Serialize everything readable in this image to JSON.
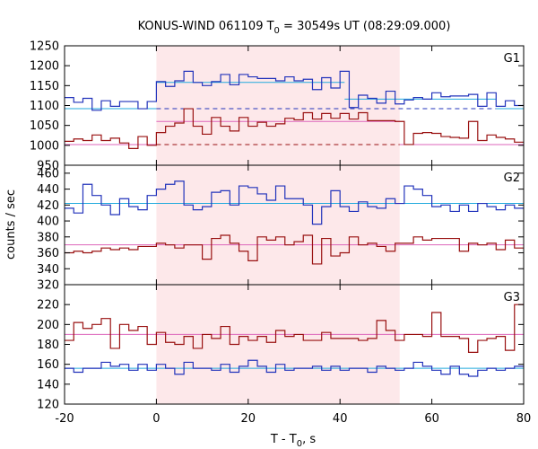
{
  "chart_data": {
    "type": "line",
    "title": "KONUS-WIND 061109 T",
    "title_sub": "0",
    "title_rest": " = 30549s UT (08:29:09.000)",
    "xlabel": "T - T",
    "xlabel_sub": "0",
    "xlabel_rest": ", s",
    "ylabel": "counts / sec",
    "xlim": [
      -20,
      80
    ],
    "xticks": [
      "-20",
      "0",
      "20",
      "40",
      "60",
      "80"
    ],
    "xtick_values": [
      -20,
      0,
      20,
      40,
      60,
      80
    ],
    "highlight_interval": [
      0,
      53
    ],
    "highlight_color": "#fde8ea",
    "bin_edges": [
      -20,
      -18,
      -16,
      -14,
      -12,
      -10,
      -8,
      -6,
      -4,
      -2,
      0,
      2,
      4,
      6,
      8,
      10,
      12,
      14,
      16,
      18,
      20,
      22,
      24,
      26,
      28,
      30,
      32,
      34,
      36,
      38,
      40,
      42,
      44,
      46,
      48,
      50,
      52,
      54,
      56,
      58,
      60,
      62,
      64,
      66,
      68,
      70,
      72,
      74,
      76,
      78,
      80
    ],
    "panels": [
      {
        "label": "G1",
        "ylim": [
          950,
          1250
        ],
        "yticks": [
          "950",
          "1000",
          "1050",
          "1100",
          "1150",
          "1200",
          "1250"
        ],
        "ytick_values": [
          950,
          1000,
          1050,
          1100,
          1150,
          1200,
          1250
        ],
        "series": [
          {
            "color": "#2233bb",
            "values": [
              1120,
              1108,
              1118,
              1088,
              1112,
              1098,
              1110,
              1110,
              1092,
              1110,
              1160,
              1148,
              1162,
              1186,
              1158,
              1150,
              1160,
              1178,
              1152,
              1178,
              1172,
              1168,
              1168,
              1162,
              1172,
              1162,
              1166,
              1140,
              1170,
              1144,
              1186,
              1095,
              1126,
              1118,
              1106,
              1136,
              1104,
              1114,
              1120,
              1116,
              1132,
              1122,
              1124,
              1124,
              1128,
              1098,
              1132,
              1098,
              1112,
              1100
            ]
          },
          {
            "color": "#991111",
            "values": [
              1010,
              1016,
              1012,
              1026,
              1012,
              1018,
              1006,
              992,
              1022,
              1000,
              1032,
              1048,
              1056,
              1092,
              1048,
              1028,
              1070,
              1048,
              1036,
              1070,
              1048,
              1058,
              1048,
              1054,
              1068,
              1064,
              1082,
              1066,
              1080,
              1068,
              1080,
              1066,
              1082,
              1062,
              1062,
              1062,
              1060,
              1002,
              1030,
              1032,
              1030,
              1022,
              1020,
              1018,
              1060,
              1012,
              1026,
              1020,
              1016,
              1008
            ]
          }
        ],
        "background_levels": [
          {
            "color": "#22aadd",
            "level": 1092,
            "style": "solid",
            "segments": [
              [
                -20,
                0
              ],
              [
                74,
                80
              ]
            ]
          },
          {
            "color": "#dd66bb",
            "level": 1002,
            "style": "solid",
            "segments": [
              [
                -20,
                0
              ],
              [
                53,
                80
              ]
            ]
          },
          {
            "color": "#22aadd",
            "level": 1158,
            "style": "solid",
            "segments": [
              [
                0,
                41
              ]
            ]
          },
          {
            "color": "#22aadd",
            "level": 1116,
            "style": "solid",
            "segments": [
              [
                41,
                74
              ]
            ]
          },
          {
            "color": "#dd66bb",
            "level": 1060,
            "style": "solid",
            "segments": [
              [
                0,
                53
              ]
            ]
          },
          {
            "color": "#2233bb",
            "level": 1092,
            "style": "dashed",
            "segments": [
              [
                0,
                74
              ]
            ]
          },
          {
            "color": "#991111",
            "level": 1002,
            "style": "dashed",
            "segments": [
              [
                0,
                53
              ]
            ]
          }
        ]
      },
      {
        "label": "G2",
        "ylim": [
          320,
          470
        ],
        "yticks": [
          "320",
          "340",
          "360",
          "380",
          "400",
          "420",
          "440",
          "460"
        ],
        "ytick_values": [
          320,
          340,
          360,
          380,
          400,
          420,
          440,
          460
        ],
        "series": [
          {
            "color": "#2233bb",
            "values": [
              416,
              410,
              446,
              432,
              420,
              408,
              428,
              418,
              414,
              432,
              440,
              446,
              450,
              420,
              414,
              418,
              436,
              438,
              420,
              444,
              442,
              434,
              426,
              444,
              428,
              428,
              420,
              396,
              418,
              438,
              418,
              412,
              424,
              418,
              416,
              428,
              422,
              444,
              440,
              432,
              418,
              420,
              412,
              420,
              412,
              422,
              418,
              414,
              420,
              416
            ]
          },
          {
            "color": "#991111",
            "values": [
              360,
              362,
              360,
              362,
              366,
              364,
              366,
              364,
              368,
              368,
              372,
              370,
              366,
              370,
              370,
              352,
              378,
              382,
              372,
              362,
              350,
              380,
              376,
              380,
              370,
              374,
              382,
              346,
              378,
              356,
              360,
              380,
              370,
              372,
              368,
              362,
              372,
              372,
              380,
              376,
              378,
              378,
              378,
              362,
              372,
              370,
              372,
              364,
              376,
              366
            ]
          }
        ],
        "background_levels": [
          {
            "color": "#22aadd",
            "level": 422,
            "style": "solid",
            "segments": [
              [
                -20,
                80
              ]
            ]
          },
          {
            "color": "#dd66bb",
            "level": 370,
            "style": "solid",
            "segments": [
              [
                -20,
                80
              ]
            ]
          }
        ]
      },
      {
        "label": "G3",
        "ylim": [
          120,
          240
        ],
        "yticks": [
          "120",
          "140",
          "160",
          "180",
          "200",
          "220"
        ],
        "ytick_values": [
          120,
          140,
          160,
          180,
          200,
          220
        ],
        "series": [
          {
            "color": "#2233bb",
            "values": [
              156,
              152,
              156,
              156,
              162,
              158,
              160,
              154,
              160,
              154,
              160,
              156,
              150,
              162,
              156,
              156,
              154,
              160,
              152,
              158,
              164,
              158,
              152,
              160,
              154,
              156,
              156,
              158,
              154,
              158,
              154,
              156,
              156,
              152,
              158,
              156,
              154,
              156,
              162,
              158,
              154,
              150,
              158,
              150,
              148,
              154,
              156,
              154,
              156,
              158
            ]
          },
          {
            "color": "#991111",
            "values": [
              184,
              202,
              196,
              200,
              206,
              176,
              200,
              194,
              198,
              180,
              192,
              182,
              180,
              188,
              176,
              190,
              186,
              198,
              180,
              188,
              184,
              188,
              182,
              194,
              188,
              190,
              184,
              184,
              192,
              186,
              186,
              186,
              184,
              186,
              204,
              194,
              184,
              190,
              190,
              188,
              212,
              188,
              188,
              186,
              172,
              184,
              186,
              188,
              174,
              220
            ]
          }
        ],
        "background_levels": [
          {
            "color": "#22aadd",
            "level": 156,
            "style": "solid",
            "segments": [
              [
                -20,
                80
              ]
            ]
          },
          {
            "color": "#dd66bb",
            "level": 190,
            "style": "solid",
            "segments": [
              [
                -20,
                80
              ]
            ]
          }
        ]
      }
    ]
  }
}
